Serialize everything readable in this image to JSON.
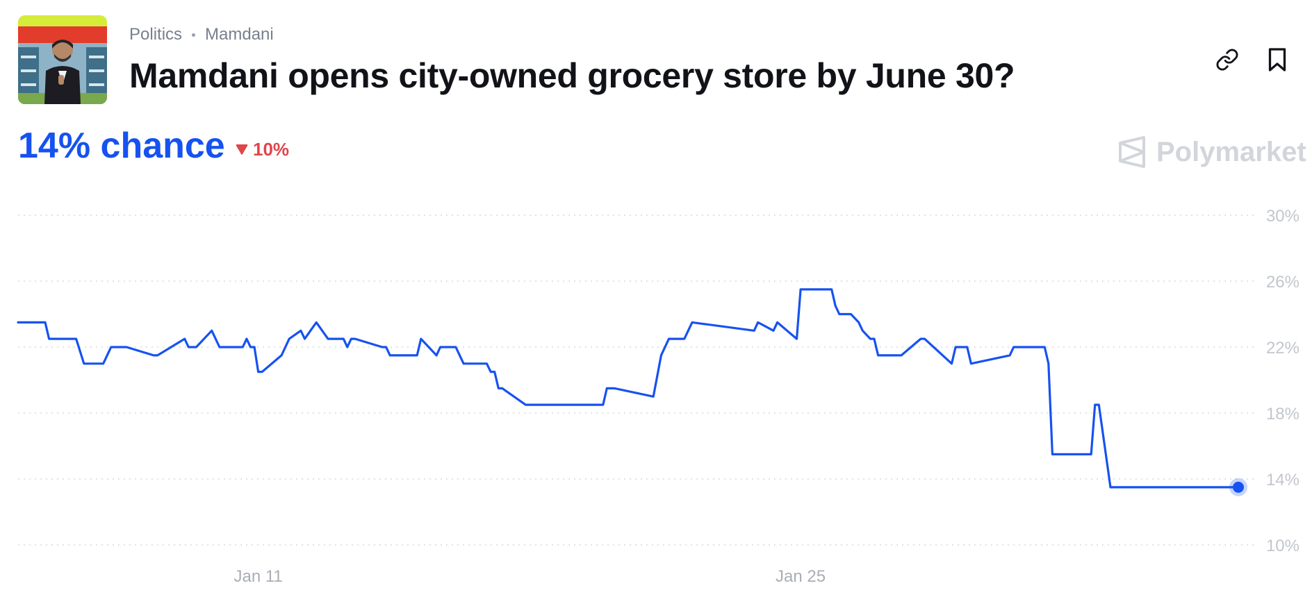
{
  "header": {
    "breadcrumb": [
      "Politics",
      "Mamdani"
    ],
    "title": "Mamdani opens city-owned grocery store by June 30?"
  },
  "icons": {
    "link": "link-icon",
    "bookmark": "bookmark-icon",
    "brand": "polymarket-logo-icon"
  },
  "summary": {
    "chance": "14% chance",
    "change": "10%",
    "change_direction": "down"
  },
  "brand": {
    "name": "Polymarket"
  },
  "colors": {
    "line": "#1652f0",
    "negative": "#e0454a",
    "grid": "#d5d8dc"
  },
  "chart_data": {
    "type": "line",
    "title": "",
    "xlabel": "",
    "ylabel": "",
    "ylim": [
      10,
      30
    ],
    "y_ticks": [
      30,
      26,
      22,
      18,
      14,
      10
    ],
    "y_tick_labels": [
      "30%",
      "26%",
      "22%",
      "18%",
      "14%",
      "10%"
    ],
    "x_ticks": [
      {
        "label": "Jan 11",
        "x": 11
      },
      {
        "label": "Jan 25",
        "x": 25
      }
    ],
    "x_range": [
      4.8,
      36.3
    ],
    "grid": true,
    "legend": "none",
    "series": [
      {
        "x": [
          4.8,
          5.5,
          5.6,
          6.3,
          6.5,
          7.0,
          7.2,
          7.6,
          8.3,
          8.4,
          9.1,
          9.2,
          9.4,
          9.8,
          10.0,
          10.6,
          10.7,
          10.8,
          10.9,
          11.0,
          11.1,
          11.6,
          11.8,
          12.1,
          12.2,
          12.5,
          12.8,
          12.9,
          13.1,
          13.2,
          13.3,
          13.4,
          13.5,
          14.2,
          14.3,
          14.4,
          15.1,
          15.2,
          15.6,
          15.7,
          16.1,
          16.2,
          16.3,
          16.9,
          17.0,
          17.1,
          17.2,
          17.3,
          17.9,
          18.1,
          19.9,
          20.0,
          20.2,
          21.2,
          21.4,
          21.6,
          22.0,
          22.2,
          23.8,
          23.9,
          24.3,
          24.4,
          24.9,
          25.0,
          25.2,
          25.8,
          25.9,
          26.0,
          26.1,
          26.3,
          26.5,
          26.6,
          26.8,
          26.9,
          27.0,
          27.3,
          27.4,
          27.6,
          28.1,
          28.2,
          28.9,
          29.0,
          29.1,
          29.3,
          29.4,
          30.4,
          30.5,
          31.3,
          31.4,
          31.5,
          32.5,
          32.6,
          32.7,
          33.0,
          33.1,
          34.8,
          35.0,
          35.1,
          35.3,
          35.6,
          35.7,
          36.0,
          36.2,
          36.3
        ],
        "y": [
          23.5,
          23.5,
          22.5,
          22.5,
          21.0,
          21.0,
          22.0,
          22.0,
          21.5,
          21.5,
          22.5,
          22.0,
          22.0,
          23.0,
          22.0,
          22.0,
          22.5,
          22.0,
          22.0,
          20.5,
          20.5,
          21.5,
          22.5,
          23.0,
          22.5,
          23.5,
          22.5,
          22.5,
          22.5,
          22.5,
          22.0,
          22.5,
          22.5,
          22.0,
          22.0,
          21.5,
          21.5,
          22.5,
          21.5,
          22.0,
          22.0,
          21.5,
          21.0,
          21.0,
          20.5,
          20.5,
          19.5,
          19.5,
          18.5,
          18.5,
          18.5,
          19.5,
          19.5,
          19.0,
          21.5,
          22.5,
          22.5,
          23.5,
          23.0,
          23.5,
          23.0,
          23.5,
          22.5,
          25.5,
          25.5,
          25.5,
          24.5,
          24.0,
          24.0,
          24.0,
          23.5,
          23.0,
          22.5,
          22.5,
          21.5,
          21.5,
          21.5,
          21.5,
          22.5,
          22.5,
          21.0,
          22.0,
          22.0,
          22.0,
          21.0,
          21.5,
          22.0,
          22.0,
          21.0,
          15.5,
          15.5,
          18.5,
          18.5,
          13.5,
          13.5,
          13.5,
          13.5,
          13.5,
          13.5,
          13.5,
          13.5,
          13.5,
          13.5,
          13.5
        ],
        "color": "#1652f0"
      }
    ]
  }
}
